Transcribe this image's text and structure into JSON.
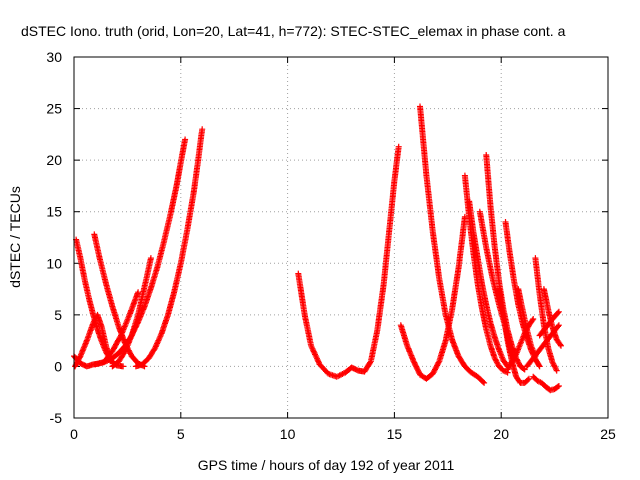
{
  "chart_data": {
    "type": "scatter",
    "title": "dSTEC Iono. truth (orid, Lon=20, Lat=41, h=772): STEC-STEC_elemax in phase cont. a",
    "xlabel": "GPS time / hours of day 192 of year 2011",
    "ylabel": "dSTEC  / TECUs",
    "xlim": [
      0,
      25
    ],
    "ylim": [
      -5,
      30
    ],
    "xticks": [
      0,
      5,
      10,
      15,
      20,
      25
    ],
    "yticks": [
      -5,
      0,
      5,
      10,
      15,
      20,
      25,
      30
    ],
    "xtick_labels": [
      "0",
      "5",
      "10",
      "15",
      "20",
      "25"
    ],
    "ytick_labels": [
      "-5",
      "0",
      "5",
      "10",
      "15",
      "20",
      "25",
      "30"
    ],
    "grid": true,
    "marker": "+",
    "color": "#ff0000",
    "series": [
      {
        "x": [
          0.0,
          0.3,
          0.6,
          0.9,
          1.2,
          1.5,
          1.8,
          2.1,
          2.4,
          2.7,
          3.0,
          3.3,
          3.6,
          3.9,
          4.2,
          4.5,
          4.8,
          5.0,
          5.2
        ],
        "y": [
          1.0,
          0.3,
          0.0,
          0.2,
          0.3,
          0.5,
          0.8,
          1.3,
          2.0,
          3.0,
          4.3,
          5.8,
          7.6,
          9.6,
          12.0,
          14.6,
          17.5,
          19.8,
          22.0
        ]
      },
      {
        "x": [
          0.1,
          0.3,
          0.5,
          0.7,
          0.9,
          1.1,
          1.3,
          1.5,
          1.7,
          2.0,
          2.3
        ],
        "y": [
          12.3,
          10.5,
          8.4,
          6.6,
          5.0,
          3.6,
          2.4,
          1.4,
          0.6,
          0.1,
          0.0
        ]
      },
      {
        "x": [
          0.05,
          0.3,
          0.6,
          0.9,
          1.1,
          1.3,
          1.5,
          1.7
        ],
        "y": [
          0.0,
          1.0,
          2.5,
          4.2,
          5.0,
          3.8,
          2.0,
          0.5
        ]
      },
      {
        "x": [
          0.95,
          1.2,
          1.5,
          1.8,
          2.1,
          2.4,
          2.7,
          3.0,
          3.3
        ],
        "y": [
          12.8,
          10.5,
          8.0,
          5.8,
          3.8,
          2.2,
          1.0,
          0.3,
          0.0
        ]
      },
      {
        "x": [
          1.0,
          1.4,
          1.8,
          2.2,
          2.6,
          3.0
        ],
        "y": [
          0.2,
          0.4,
          1.5,
          3.0,
          5.0,
          7.2
        ]
      },
      {
        "x": [
          1.8,
          2.1,
          2.4,
          2.7,
          3.0,
          3.2,
          3.4,
          3.6
        ],
        "y": [
          0.0,
          0.5,
          1.5,
          3.0,
          5.0,
          6.8,
          8.6,
          10.5
        ]
      },
      {
        "x": [
          2.9,
          3.2,
          3.5,
          3.8,
          4.1,
          4.4,
          4.7,
          5.0,
          5.3,
          5.6,
          5.8,
          6.0
        ],
        "y": [
          0.0,
          0.2,
          0.8,
          1.8,
          3.2,
          5.0,
          7.3,
          10.0,
          13.2,
          16.8,
          19.8,
          23.0
        ]
      },
      {
        "x": [
          10.5,
          10.8,
          11.1,
          11.5,
          11.9,
          12.3,
          12.7,
          13.0,
          13.3,
          13.6,
          13.9,
          14.2,
          14.5,
          14.8,
          15.0,
          15.2
        ],
        "y": [
          9.0,
          5.0,
          2.0,
          0.2,
          -0.7,
          -1.0,
          -0.6,
          -0.1,
          -0.4,
          -0.5,
          0.5,
          3.5,
          8.0,
          14.0,
          18.0,
          21.3
        ]
      },
      {
        "x": [
          15.3,
          15.6,
          15.9,
          16.2,
          16.5,
          16.8,
          17.1,
          17.4,
          17.7,
          18.0,
          18.3
        ],
        "y": [
          4.0,
          2.0,
          0.5,
          -0.8,
          -1.2,
          -0.7,
          0.5,
          2.5,
          5.5,
          9.5,
          14.5
        ]
      },
      {
        "x": [
          16.2,
          16.5,
          16.8,
          17.1,
          17.4,
          17.7,
          18.0,
          18.3,
          18.6,
          18.9,
          19.2
        ],
        "y": [
          25.2,
          18.5,
          13.0,
          8.5,
          5.0,
          2.6,
          1.0,
          0.0,
          -0.6,
          -1.0,
          -1.6
        ]
      },
      {
        "x": [
          18.3,
          18.5,
          18.7,
          18.9,
          19.1,
          19.3,
          19.5,
          19.7,
          19.9,
          20.1,
          20.3
        ],
        "y": [
          18.5,
          14.5,
          11.0,
          8.0,
          5.6,
          3.6,
          2.0,
          0.8,
          0.0,
          -0.4,
          -0.6
        ]
      },
      {
        "x": [
          18.5,
          18.7,
          18.9,
          19.1,
          19.3,
          19.5,
          19.7,
          19.9,
          20.1,
          20.3
        ],
        "y": [
          16.0,
          13.0,
          10.5,
          8.0,
          6.0,
          4.2,
          2.8,
          1.6,
          0.6,
          0.0
        ]
      },
      {
        "x": [
          19.3,
          19.5,
          19.7,
          19.9,
          20.1,
          20.3,
          20.5,
          20.7,
          20.9,
          21.1
        ],
        "y": [
          20.5,
          15.5,
          11.5,
          8.2,
          5.6,
          3.5,
          2.0,
          0.8,
          0.0,
          -0.3
        ]
      },
      {
        "x": [
          19.0,
          19.3,
          19.6,
          19.9,
          20.2,
          20.4,
          20.6
        ],
        "y": [
          15.0,
          11.5,
          8.5,
          6.0,
          3.8,
          2.0,
          0.5
        ]
      },
      {
        "x": [
          19.9,
          20.1,
          20.3,
          20.5,
          20.7,
          20.9,
          21.1,
          21.3
        ],
        "y": [
          7.5,
          5.0,
          2.5,
          0.5,
          -1.0,
          -1.6,
          -1.6,
          -1.2
        ]
      },
      {
        "x": [
          20.2,
          20.4,
          20.6,
          20.8,
          21.0,
          21.2,
          21.4,
          21.6,
          21.8
        ],
        "y": [
          14.0,
          11.0,
          8.3,
          6.0,
          4.2,
          2.8,
          1.6,
          0.7,
          0.0
        ]
      },
      {
        "x": [
          20.3,
          20.5,
          20.7,
          20.9,
          21.1,
          21.3,
          21.5
        ],
        "y": [
          -0.3,
          0.5,
          1.2,
          2.2,
          3.2,
          4.0,
          4.6
        ]
      },
      {
        "x": [
          20.8,
          21.0,
          21.2,
          21.4,
          21.6
        ],
        "y": [
          7.5,
          5.5,
          3.6,
          2.0,
          1.0
        ]
      },
      {
        "x": [
          21.6,
          21.8,
          22.0,
          22.2,
          22.4,
          22.6
        ],
        "y": [
          10.5,
          7.0,
          4.0,
          1.8,
          0.4,
          -0.4
        ]
      },
      {
        "x": [
          21.5,
          21.7,
          21.9,
          22.1,
          22.3,
          22.5,
          22.7
        ],
        "y": [
          -1.0,
          -1.4,
          -1.6,
          -2.0,
          -2.3,
          -2.2,
          -1.9
        ]
      },
      {
        "x": [
          21.2,
          21.5,
          21.8,
          22.1,
          22.4,
          22.7
        ],
        "y": [
          0.0,
          0.8,
          1.6,
          2.4,
          3.2,
          4.0
        ]
      },
      {
        "x": [
          21.8,
          22.1,
          22.4,
          22.7
        ],
        "y": [
          3.0,
          3.8,
          4.6,
          5.3
        ]
      },
      {
        "x": [
          22.0,
          22.2,
          22.4,
          22.6,
          22.8
        ],
        "y": [
          7.5,
          5.5,
          3.8,
          2.6,
          2.0
        ]
      }
    ]
  }
}
